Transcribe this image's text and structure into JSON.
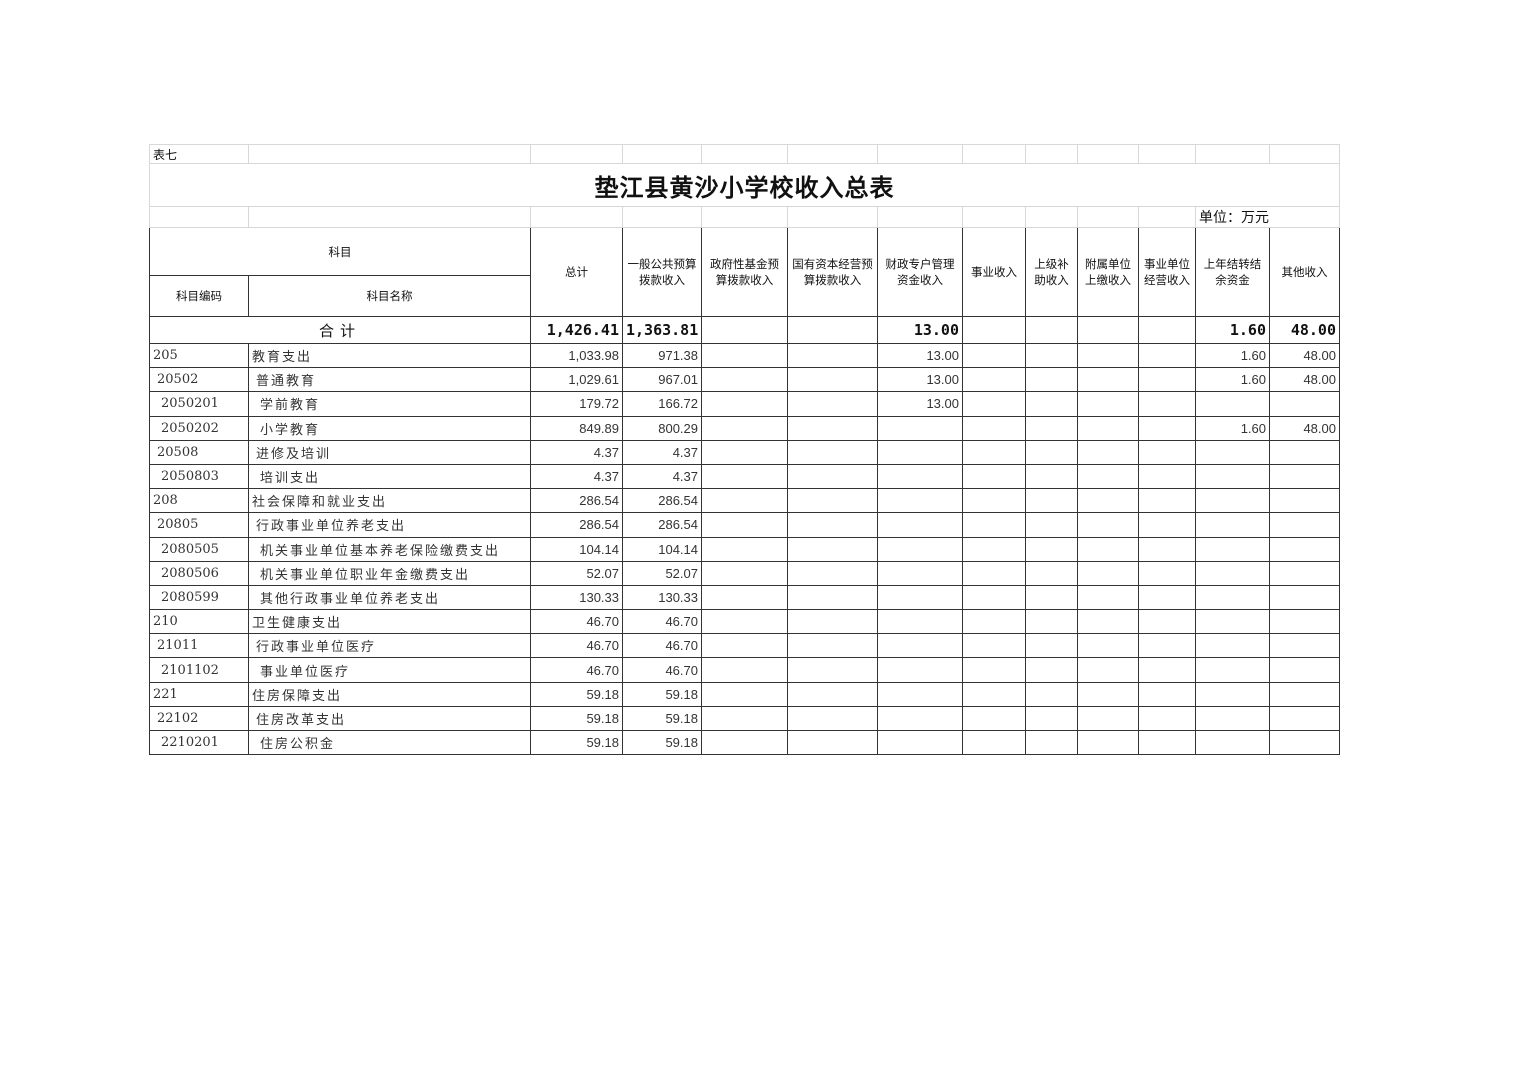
{
  "table_no": "表七",
  "title": "垫江县黄沙小学校收入总表",
  "unit": "单位：万元",
  "headers": {
    "subject": "科目",
    "code": "科目编码",
    "name": "科目名称",
    "columns": [
      "总计",
      "一般公共预算拨款收入",
      "政府性基金预算拨款收入",
      "国有资本经营预算拨款收入",
      "财政专户管理资金收入",
      "事业收入",
      "上级补助收入",
      "附属单位上缴收入",
      "事业单位经营收入",
      "上年结转结余资金",
      "其他收入"
    ]
  },
  "total": {
    "label": "合计",
    "values": [
      "1,426.41",
      "1,363.81",
      "",
      "",
      "13.00",
      "",
      "",
      "",
      "",
      "1.60",
      "48.00"
    ]
  },
  "rows": [
    {
      "code": "205",
      "level": 0,
      "name": "教育支出",
      "values": [
        "1,033.98",
        "971.38",
        "",
        "",
        "13.00",
        "",
        "",
        "",
        "",
        "1.60",
        "48.00"
      ]
    },
    {
      "code": "20502",
      "level": 1,
      "name": "普通教育",
      "values": [
        "1,029.61",
        "967.01",
        "",
        "",
        "13.00",
        "",
        "",
        "",
        "",
        "1.60",
        "48.00"
      ]
    },
    {
      "code": "2050201",
      "level": 2,
      "name": "学前教育",
      "values": [
        "179.72",
        "166.72",
        "",
        "",
        "13.00",
        "",
        "",
        "",
        "",
        "",
        ""
      ]
    },
    {
      "code": "2050202",
      "level": 2,
      "name": "小学教育",
      "values": [
        "849.89",
        "800.29",
        "",
        "",
        "",
        "",
        "",
        "",
        "",
        "1.60",
        "48.00"
      ]
    },
    {
      "code": "20508",
      "level": 1,
      "name": "进修及培训",
      "values": [
        "4.37",
        "4.37",
        "",
        "",
        "",
        "",
        "",
        "",
        "",
        "",
        ""
      ]
    },
    {
      "code": "2050803",
      "level": 2,
      "name": "培训支出",
      "values": [
        "4.37",
        "4.37",
        "",
        "",
        "",
        "",
        "",
        "",
        "",
        "",
        ""
      ]
    },
    {
      "code": "208",
      "level": 0,
      "name": "社会保障和就业支出",
      "values": [
        "286.54",
        "286.54",
        "",
        "",
        "",
        "",
        "",
        "",
        "",
        "",
        ""
      ]
    },
    {
      "code": "20805",
      "level": 1,
      "name": "行政事业单位养老支出",
      "values": [
        "286.54",
        "286.54",
        "",
        "",
        "",
        "",
        "",
        "",
        "",
        "",
        ""
      ]
    },
    {
      "code": "2080505",
      "level": 2,
      "name": "机关事业单位基本养老保险缴费支出",
      "values": [
        "104.14",
        "104.14",
        "",
        "",
        "",
        "",
        "",
        "",
        "",
        "",
        ""
      ]
    },
    {
      "code": "2080506",
      "level": 2,
      "name": "机关事业单位职业年金缴费支出",
      "values": [
        "52.07",
        "52.07",
        "",
        "",
        "",
        "",
        "",
        "",
        "",
        "",
        ""
      ]
    },
    {
      "code": "2080599",
      "level": 2,
      "name": "其他行政事业单位养老支出",
      "values": [
        "130.33",
        "130.33",
        "",
        "",
        "",
        "",
        "",
        "",
        "",
        "",
        ""
      ]
    },
    {
      "code": "210",
      "level": 0,
      "name": "卫生健康支出",
      "values": [
        "46.70",
        "46.70",
        "",
        "",
        "",
        "",
        "",
        "",
        "",
        "",
        ""
      ]
    },
    {
      "code": "21011",
      "level": 1,
      "name": "行政事业单位医疗",
      "values": [
        "46.70",
        "46.70",
        "",
        "",
        "",
        "",
        "",
        "",
        "",
        "",
        ""
      ]
    },
    {
      "code": "2101102",
      "level": 2,
      "name": "事业单位医疗",
      "values": [
        "46.70",
        "46.70",
        "",
        "",
        "",
        "",
        "",
        "",
        "",
        "",
        ""
      ]
    },
    {
      "code": "221",
      "level": 0,
      "name": "住房保障支出",
      "values": [
        "59.18",
        "59.18",
        "",
        "",
        "",
        "",
        "",
        "",
        "",
        "",
        ""
      ]
    },
    {
      "code": "22102",
      "level": 1,
      "name": "住房改革支出",
      "values": [
        "59.18",
        "59.18",
        "",
        "",
        "",
        "",
        "",
        "",
        "",
        "",
        ""
      ]
    },
    {
      "code": "2210201",
      "level": 2,
      "name": "住房公积金",
      "values": [
        "59.18",
        "59.18",
        "",
        "",
        "",
        "",
        "",
        "",
        "",
        "",
        ""
      ]
    }
  ]
}
